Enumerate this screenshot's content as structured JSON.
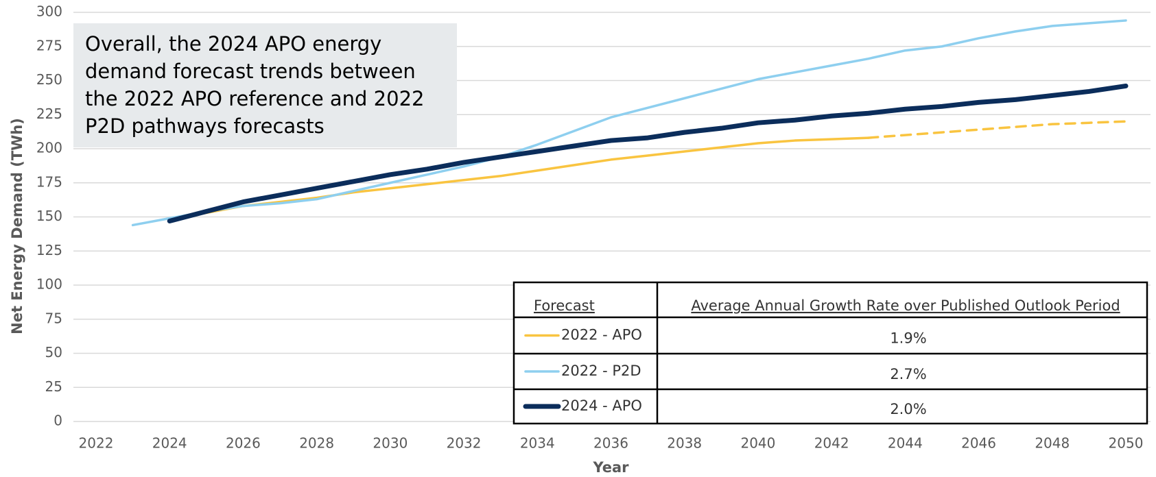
{
  "chart_data": {
    "type": "line",
    "ylabel": "Net  Energy Demand (TWh)",
    "xlabel": "Year",
    "annotation": [
      "Overall, the 2024 APO energy",
      "demand forecast trends between",
      "the 2022 APO reference and 2022",
      "P2D pathways forecasts"
    ],
    "x": [
      2023,
      2024,
      2025,
      2026,
      2027,
      2028,
      2029,
      2030,
      2031,
      2032,
      2033,
      2034,
      2035,
      2036,
      2037,
      2038,
      2039,
      2040,
      2041,
      2042,
      2043,
      2044,
      2045,
      2046,
      2047,
      2048,
      2049,
      2050
    ],
    "series": [
      {
        "name": "2022 - APO",
        "color": "#F9C440",
        "width": 3.5,
        "dash_from": 2043,
        "values": [
          null,
          148,
          153,
          158,
          161,
          164,
          168,
          171,
          174,
          177,
          180,
          184,
          188,
          192,
          195,
          198,
          201,
          204,
          206,
          207,
          208,
          210,
          212,
          214,
          216,
          218,
          219,
          220
        ]
      },
      {
        "name": "2022 - P2D",
        "color": "#8ECFEF",
        "width": 3.5,
        "values": [
          144,
          149,
          154,
          158,
          160,
          163,
          169,
          175,
          181,
          187,
          194,
          203,
          213,
          223,
          230,
          237,
          244,
          251,
          256,
          261,
          266,
          272,
          275,
          281,
          286,
          290,
          292,
          294
        ]
      },
      {
        "name": "2024 - APO",
        "color": "#0B2D5B",
        "width": 7,
        "values": [
          null,
          147,
          154,
          161,
          166,
          171,
          176,
          181,
          185,
          190,
          194,
          198,
          202,
          206,
          208,
          212,
          215,
          219,
          221,
          224,
          226,
          229,
          231,
          234,
          236,
          239,
          242,
          246
        ]
      }
    ],
    "xlim": [
      2022,
      2050
    ],
    "xticks": [
      2022,
      2024,
      2026,
      2028,
      2030,
      2032,
      2034,
      2036,
      2038,
      2040,
      2042,
      2044,
      2046,
      2048,
      2050
    ],
    "ylim": [
      0,
      300
    ],
    "yticks": [
      0,
      25,
      50,
      75,
      100,
      125,
      150,
      175,
      200,
      225,
      250,
      275,
      300
    ],
    "grid": true,
    "table": {
      "headers": [
        "Forecast",
        "Average Annual Growth Rate over Published Outlook Period"
      ],
      "rates": [
        "1.9%",
        "2.7%",
        "2.0%"
      ]
    }
  }
}
